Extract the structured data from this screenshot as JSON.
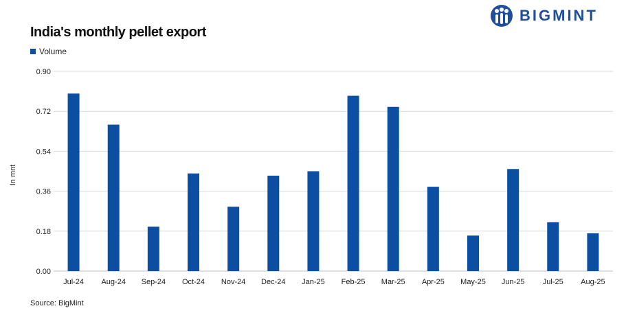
{
  "brand": {
    "name": "BIGMINT"
  },
  "source": "Source: BigMint",
  "colors": {
    "bar": "#0b4ea2",
    "grid": "#d9d9d9",
    "brand": "#1f4e9c"
  },
  "chart_data": {
    "type": "bar",
    "title": "India's monthly pellet export",
    "xlabel": "",
    "ylabel": "In mnt",
    "categories": [
      "Jul-24",
      "Aug-24",
      "Sep-24",
      "Oct-24",
      "Nov-24",
      "Dec-24",
      "Jan-25",
      "Feb-25",
      "Mar-25",
      "Apr-25",
      "May-25",
      "Jun-25",
      "Jul-25",
      "Aug-25"
    ],
    "series": [
      {
        "name": "Volume",
        "values": [
          0.8,
          0.66,
          0.2,
          0.44,
          0.29,
          0.43,
          0.45,
          0.79,
          0.74,
          0.38,
          0.16,
          0.46,
          0.22,
          0.17
        ]
      }
    ],
    "ylim": [
      0,
      0.9
    ],
    "yticks": [
      "0.00",
      "0.18",
      "0.36",
      "0.54",
      "0.72",
      "0.90"
    ],
    "grid": true,
    "legend_position": "top-left"
  }
}
